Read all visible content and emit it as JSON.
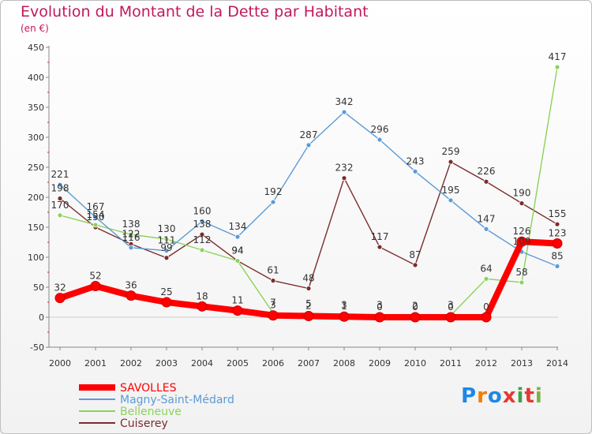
{
  "title": "Evolution du Montant de la Dette par Habitant",
  "unit": "(en €)",
  "logo": {
    "letters": [
      "P",
      "r",
      "o",
      "x",
      "i",
      "t",
      "i"
    ],
    "colors": [
      "#1e88e5",
      "#f57c00",
      "#1e88e5",
      "#e53935",
      "#43a047",
      "#e53935",
      "#7cb342"
    ]
  },
  "chart_data": {
    "type": "line",
    "x": [
      "2000",
      "2001",
      "2002",
      "2003",
      "2004",
      "2005",
      "2006",
      "2007",
      "2008",
      "2009",
      "2010",
      "2011",
      "2012",
      "2013",
      "2014"
    ],
    "ylim": [
      -50,
      450
    ],
    "yticks": [
      -50,
      0,
      50,
      100,
      150,
      200,
      250,
      300,
      350,
      400,
      450
    ],
    "grid": false,
    "legend": "bottom-left",
    "series": [
      {
        "name": "Cuiserey",
        "color": "#7b2c2c",
        "values": [
          198,
          150,
          122,
          99,
          138,
          94,
          61,
          48,
          232,
          117,
          87,
          259,
          226,
          190,
          155
        ],
        "labels": [
          "198",
          "150",
          "122",
          "99",
          "138",
          "94",
          "61",
          "48",
          "232",
          "117",
          "87",
          "259",
          "226",
          "190",
          "155"
        ]
      },
      {
        "name": "Belleneuve",
        "color": "#8bd35a",
        "values": [
          170,
          154,
          138,
          130,
          112,
          94,
          7,
          5,
          3,
          3,
          2,
          3,
          64,
          58,
          417
        ],
        "labels": [
          "170",
          "154",
          "138",
          "130",
          "112",
          "94",
          "7",
          "5",
          "3",
          "3",
          "2",
          "3",
          "64",
          "58",
          "417"
        ]
      },
      {
        "name": "Magny-Saint-Médard",
        "color": "#5b9bd5",
        "values": [
          221,
          167,
          116,
          111,
          160,
          134,
          192,
          287,
          342,
          296,
          243,
          195,
          147,
          109,
          85
        ],
        "labels": [
          "221",
          "167",
          "116",
          "111",
          "160",
          "134",
          "192",
          "287",
          "342",
          "296",
          "243",
          "195",
          "147",
          "109",
          "85"
        ]
      },
      {
        "name": "SAVOLLES",
        "color": "#ff0000",
        "values": [
          32,
          52,
          36,
          25,
          18,
          11,
          3,
          2,
          1,
          0,
          0,
          0,
          0,
          126,
          123
        ],
        "labels": [
          "32",
          "52",
          "36",
          "25",
          "18",
          "11",
          "3",
          "2",
          "1",
          "0",
          "0",
          "0",
          "0",
          "126",
          "123"
        ]
      }
    ],
    "legend_order": [
      "SAVOLLES",
      "Magny-Saint-Médard",
      "Belleneuve",
      "Cuiserey"
    ]
  }
}
